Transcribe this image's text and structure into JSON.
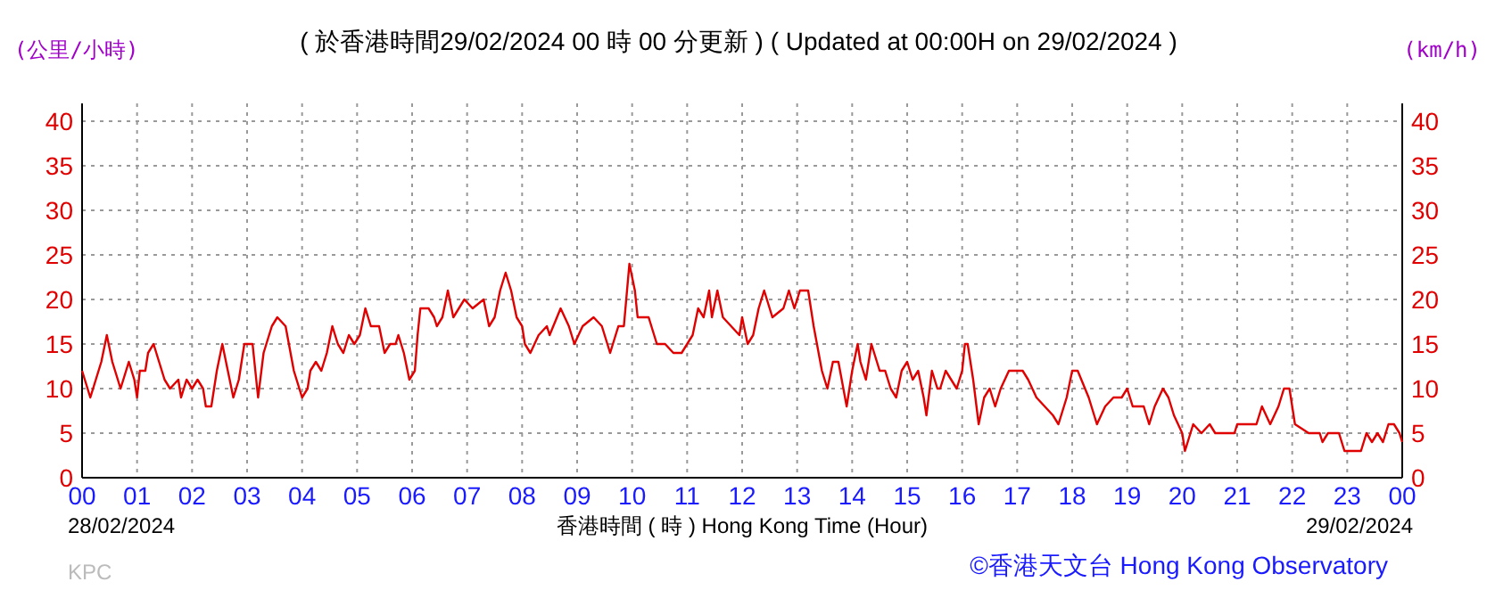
{
  "chart_data": {
    "type": "line",
    "title": "( 於香港時間29/02/2024 00 時 00 分更新 ) ( Updated at 00:00H on 29/02/2024 )",
    "ylabel": "(公里/小時)",
    "y2label": "(km/h)",
    "xlabel": "香港時間 ( 時 )  Hong Kong Time (Hour)",
    "annotations": [
      "28/02/2024",
      "29/02/2024",
      "KPC",
      "©香港天文台 Hong Kong Observatory"
    ],
    "xlim": [
      0,
      24
    ],
    "xticks": [
      {
        "value": 0,
        "label": "00"
      },
      {
        "value": 1,
        "label": "01"
      },
      {
        "value": 2,
        "label": "02"
      },
      {
        "value": 3,
        "label": "03"
      },
      {
        "value": 4,
        "label": "04"
      },
      {
        "value": 5,
        "label": "05"
      },
      {
        "value": 6,
        "label": "06"
      },
      {
        "value": 7,
        "label": "07"
      },
      {
        "value": 8,
        "label": "08"
      },
      {
        "value": 9,
        "label": "09"
      },
      {
        "value": 10,
        "label": "10"
      },
      {
        "value": 11,
        "label": "11"
      },
      {
        "value": 12,
        "label": "12"
      },
      {
        "value": 13,
        "label": "13"
      },
      {
        "value": 14,
        "label": "14"
      },
      {
        "value": 15,
        "label": "15"
      },
      {
        "value": 16,
        "label": "16"
      },
      {
        "value": 17,
        "label": "17"
      },
      {
        "value": 18,
        "label": "18"
      },
      {
        "value": 19,
        "label": "19"
      },
      {
        "value": 20,
        "label": "20"
      },
      {
        "value": 21,
        "label": "21"
      },
      {
        "value": 22,
        "label": "22"
      },
      {
        "value": 23,
        "label": "23"
      },
      {
        "value": 24,
        "label": "00"
      }
    ],
    "ylim": [
      0,
      40
    ],
    "yticks": [
      0,
      5,
      10,
      15,
      20,
      25,
      30,
      35,
      40
    ],
    "y2lim": [
      0,
      40
    ],
    "y2ticks": [
      0,
      5,
      10,
      15,
      20,
      25,
      30,
      35,
      40
    ],
    "grid": true,
    "marker": "none",
    "line_style": "solid",
    "series": [
      {
        "color": "#e00000",
        "x": [
          0,
          0.05,
          0.15,
          0.25,
          0.35,
          0.45,
          0.55,
          0.6,
          0.7,
          0.8,
          0.85,
          0.95,
          1.0,
          1.05,
          1.15,
          1.2,
          1.3,
          1.4,
          1.5,
          1.6,
          1.75,
          1.8,
          1.9,
          2.0,
          2.1,
          2.2,
          2.25,
          2.35,
          2.45,
          2.55,
          2.65,
          2.75,
          2.85,
          2.95,
          3.1,
          3.15,
          3.2,
          3.3,
          3.45,
          3.55,
          3.7,
          3.85,
          4.0,
          4.1,
          4.15,
          4.25,
          4.35,
          4.45,
          4.55,
          4.65,
          4.75,
          4.85,
          4.95,
          5.05,
          5.15,
          5.25,
          5.4,
          5.5,
          5.6,
          5.7,
          5.75,
          5.85,
          5.95,
          6.05,
          6.1,
          6.15,
          6.3,
          6.4,
          6.45,
          6.55,
          6.65,
          6.75,
          6.85,
          6.95,
          7.1,
          7.3,
          7.4,
          7.5,
          7.6,
          7.7,
          7.8,
          7.9,
          8.0,
          8.05,
          8.15,
          8.3,
          8.45,
          8.5,
          8.7,
          8.85,
          8.95,
          9.1,
          9.3,
          9.45,
          9.6,
          9.75,
          9.85,
          9.95,
          10.05,
          10.1,
          10.3,
          10.45,
          10.6,
          10.75,
          10.9,
          11.0,
          11.1,
          11.2,
          11.3,
          11.4,
          11.45,
          11.55,
          11.65,
          11.8,
          11.95,
          12.0,
          12.1,
          12.2,
          12.3,
          12.4,
          12.55,
          12.75,
          12.85,
          12.95,
          13.05,
          13.2,
          13.3,
          13.45,
          13.55,
          13.65,
          13.75,
          13.9,
          14.0,
          14.1,
          14.15,
          14.25,
          14.35,
          14.5,
          14.6,
          14.7,
          14.8,
          14.9,
          15.0,
          15.1,
          15.2,
          15.3,
          15.35,
          15.45,
          15.55,
          15.6,
          15.7,
          15.8,
          15.9,
          16.0,
          16.05,
          16.1,
          16.2,
          16.3,
          16.4,
          16.5,
          16.6,
          16.7,
          16.85,
          17.1,
          17.2,
          17.35,
          17.5,
          17.65,
          17.75,
          17.9,
          18.0,
          18.1,
          18.3,
          18.45,
          18.6,
          18.75,
          18.9,
          19.0,
          19.1,
          19.3,
          19.4,
          19.5,
          19.65,
          19.75,
          19.85,
          20.0,
          20.05,
          20.2,
          20.35,
          20.5,
          20.6,
          20.95,
          21.0,
          21.35,
          21.45,
          21.6,
          21.75,
          21.85,
          21.95,
          22.05,
          22.3,
          22.5,
          22.55,
          22.65,
          22.85,
          22.95,
          23.25,
          23.35,
          23.45,
          23.55,
          23.65,
          23.75,
          23.85,
          23.95,
          24.0
        ],
        "values": [
          12,
          11,
          9,
          11,
          13,
          16,
          13,
          12,
          10,
          12,
          13,
          11,
          9,
          12,
          12,
          14,
          15,
          13,
          11,
          10,
          11,
          9,
          11,
          10,
          11,
          10,
          8,
          8,
          12,
          15,
          12,
          9,
          11,
          15,
          15,
          12,
          9,
          14,
          17,
          18,
          17,
          12,
          9,
          10,
          12,
          13,
          12,
          14,
          17,
          15,
          14,
          16,
          15,
          16,
          19,
          17,
          17,
          14,
          15,
          15,
          16,
          14,
          11,
          12,
          16,
          19,
          19,
          18,
          17,
          18,
          21,
          18,
          19,
          20,
          19,
          20,
          17,
          18,
          21,
          23,
          21,
          18,
          17,
          15,
          14,
          16,
          17,
          16,
          19,
          17,
          15,
          17,
          18,
          17,
          14,
          17,
          17,
          24,
          21,
          18,
          18,
          15,
          15,
          14,
          14,
          15,
          16,
          19,
          18,
          21,
          18,
          21,
          18,
          17,
          16,
          18,
          15,
          16,
          19,
          21,
          18,
          19,
          21,
          19,
          21,
          21,
          17,
          12,
          10,
          13,
          13,
          8,
          12,
          15,
          13,
          11,
          15,
          12,
          12,
          10,
          9,
          12,
          13,
          11,
          12,
          9,
          7,
          12,
          10,
          10,
          12,
          11,
          10,
          12,
          15,
          15,
          11,
          6,
          9,
          10,
          8,
          10,
          12,
          12,
          11,
          9,
          8,
          7,
          6,
          9,
          12,
          12,
          9,
          6,
          8,
          9,
          9,
          10,
          8,
          8,
          6,
          8,
          10,
          9,
          7,
          5,
          3,
          6,
          5,
          6,
          5,
          5,
          6,
          6,
          8,
          6,
          8,
          10,
          10,
          6,
          5,
          5,
          4,
          5,
          5,
          3,
          3,
          5,
          4,
          5,
          4,
          6,
          6,
          5,
          4
        ]
      }
    ]
  }
}
